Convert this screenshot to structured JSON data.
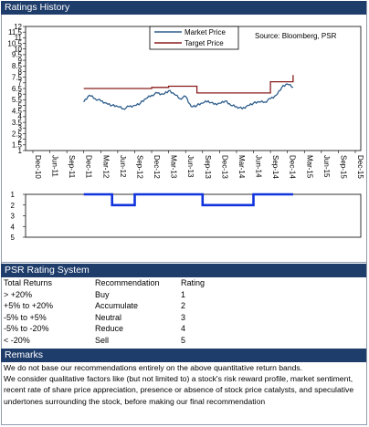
{
  "title": "Ratings History",
  "colors": {
    "header_bg": "#1f3d6b",
    "market_price": "#2e5d8c",
    "target_price": "#8a1c1c",
    "rating": "#1133dd"
  },
  "chart_data": [
    {
      "type": "line",
      "legend": [
        "Market Price",
        "Target Price"
      ],
      "legend_position": "top-center",
      "annotation": "Source: Bloomberg, PSR",
      "x_tick_labels": [
        "Dec-10",
        "Jun-11",
        "Sep-11",
        "Dec-11",
        "Mar-12",
        "Jun-12",
        "Sep-12",
        "Dec-12",
        "Mar-13",
        "Jun-13",
        "Sep-13",
        "Dec-13",
        "Mar-14",
        "Jun-14",
        "Sep-14",
        "Dec-14",
        "Mar-15",
        "Jun-15",
        "Sep-15",
        "Dec-15"
      ],
      "y_tick_labels": [
        "12",
        "11.5",
        "11",
        "10.5",
        "10",
        "9.5",
        "9",
        "8.5",
        "8",
        "7.5",
        "7",
        "6.5",
        "6",
        "5.5",
        "5",
        "4.5",
        "4",
        "3.5",
        "3",
        "2.5",
        "2",
        "1.5",
        "1"
      ],
      "ylim": [
        1,
        12
      ],
      "series": [
        {
          "name": "Market Price",
          "x": [
            "2011-12",
            "2012-01",
            "2012-02",
            "2012-03",
            "2012-04",
            "2012-05",
            "2012-06",
            "2012-07",
            "2012-08",
            "2012-09",
            "2012-10",
            "2012-11",
            "2012-12",
            "2013-01",
            "2013-02",
            "2013-03",
            "2013-04",
            "2013-05",
            "2013-06",
            "2013-07",
            "2013-08",
            "2013-09",
            "2013-10",
            "2013-11",
            "2013-12",
            "2014-01",
            "2014-02",
            "2014-03",
            "2014-04",
            "2014-05",
            "2014-06",
            "2014-07",
            "2014-08",
            "2014-09",
            "2014-10",
            "2014-11",
            "2014-12",
            "2015-01"
          ],
          "y": [
            5.3,
            5.9,
            5.6,
            5.4,
            5.2,
            5.0,
            4.9,
            4.7,
            4.9,
            5.0,
            5.2,
            5.6,
            5.9,
            6.1,
            6.0,
            6.3,
            6.0,
            5.6,
            5.8,
            4.9,
            5.0,
            5.2,
            5.4,
            5.1,
            5.2,
            5.4,
            5.0,
            4.9,
            4.7,
            5.0,
            5.2,
            5.3,
            5.3,
            5.6,
            5.9,
            6.6,
            6.9,
            6.6
          ]
        },
        {
          "name": "Target Price",
          "x": [
            "2011-12",
            "2012-12",
            "2013-03",
            "2013-06",
            "2013-08",
            "2014-09",
            "2015-01"
          ],
          "y": [
            6.5,
            6.6,
            6.7,
            6.7,
            6.1,
            7.1,
            7.7
          ]
        }
      ]
    },
    {
      "type": "line",
      "series_name": "Rating",
      "y_tick_labels": [
        "1",
        "2",
        "3",
        "4",
        "5"
      ],
      "ylim": [
        1,
        5
      ],
      "x": [
        "2011-12",
        "2012-05",
        "2012-05",
        "2012-09",
        "2012-09",
        "2013-09",
        "2013-09",
        "2014-06",
        "2014-06",
        "2015-01"
      ],
      "y": [
        1,
        1,
        2,
        2,
        1,
        1,
        2,
        2,
        1,
        1
      ]
    }
  ],
  "psr": {
    "title": "PSR Rating System",
    "headers": [
      "Total Returns",
      "Recommendation",
      "Rating"
    ],
    "rows": [
      [
        "> +20%",
        "Buy",
        "1"
      ],
      [
        "+5% to +20%",
        "Accumulate",
        "2"
      ],
      [
        "-5% to +5%",
        "Neutral",
        "3"
      ],
      [
        "-5% to -20%",
        "Reduce",
        "4"
      ],
      [
        "< -20%",
        "Sell",
        "5"
      ]
    ]
  },
  "remarks": {
    "title": "Remarks",
    "text1": "We do not base our recommendations entirely on the  above quantitative return bands.",
    "text2": "We consider qualitative factors like (but not limited to) a stock's risk reward profile, market sentiment, recent rate of share price appreciation, presence or absence of stock price catalysts, and speculative undertones surrounding the stock, before making our final recommendation"
  }
}
